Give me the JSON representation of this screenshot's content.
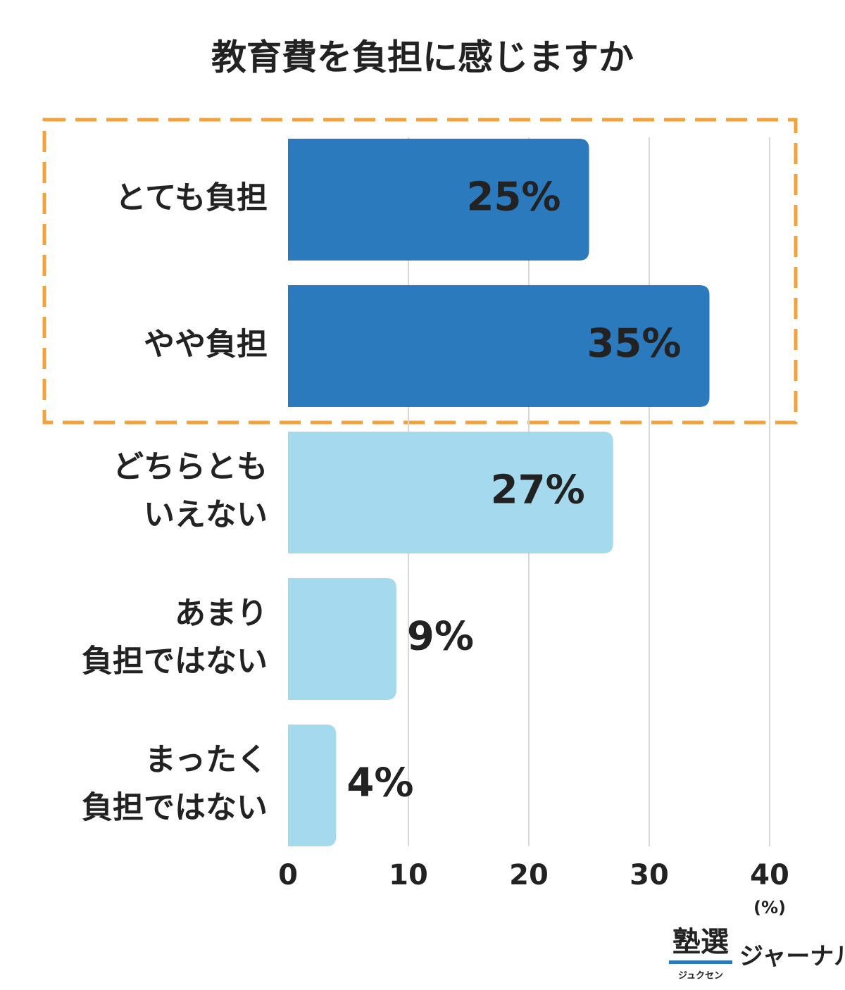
{
  "chart_data": {
    "type": "bar",
    "orientation": "horizontal",
    "title": "教育費を負担に感じますか",
    "categories": [
      [
        "とても負担"
      ],
      [
        "やや負担"
      ],
      [
        "どちらとも",
        "いえない"
      ],
      [
        "あまり",
        "負担ではない"
      ],
      [
        "まったく",
        "負担ではない"
      ]
    ],
    "values": [
      25,
      35,
      27,
      9,
      4
    ],
    "value_labels": [
      "25%",
      "35%",
      "27%",
      "9%",
      "4%"
    ],
    "colors": [
      "#2a7abd",
      "#2a7abd",
      "#a5d9ee",
      "#a5d9ee",
      "#a5d9ee"
    ],
    "xlim": [
      0,
      40
    ],
    "xticks": [
      0,
      10,
      20,
      30,
      40
    ],
    "xunit": "(%)",
    "grid": true
  },
  "logo": {
    "main": "塾選",
    "ruby": "ジュクセン",
    "sub": "ジャーナル"
  }
}
